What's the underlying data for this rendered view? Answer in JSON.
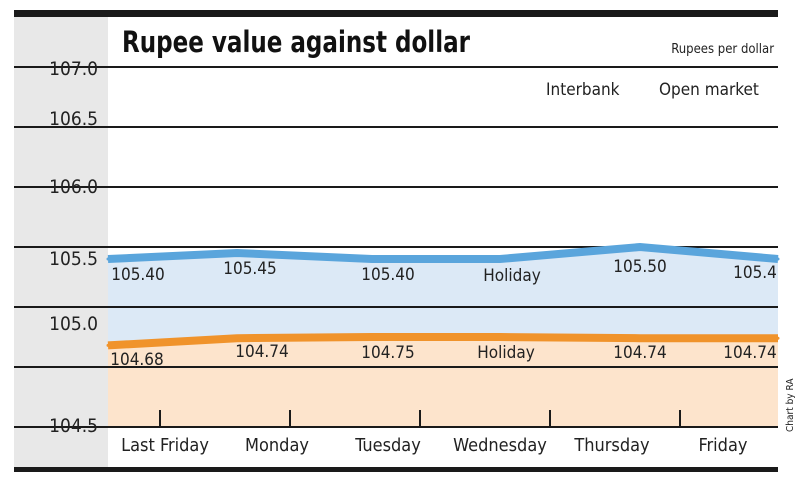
{
  "chart_data": {
    "type": "area",
    "title": "Rupee value against dollar",
    "unit_label": "Rupees per dollar",
    "legend": [
      "Interbank",
      "Open market"
    ],
    "legend_placement": "top-right",
    "categories": [
      "Last Friday",
      "Monday",
      "Tuesday",
      "Wednesday",
      "Thursday",
      "Friday"
    ],
    "y_ticks": [
      "107.0",
      "106.5",
      "106.0",
      "105.5",
      "105.0",
      "104.5"
    ],
    "ylim": [
      104.0,
      107.0
    ],
    "grid": true,
    "series": [
      {
        "color": "#5aa5dc",
        "fill": "#dce9f6",
        "values": [
          105.4,
          105.45,
          105.4,
          null,
          105.5,
          105.4
        ],
        "labels": [
          "105.40",
          "105.45",
          "105.40",
          "Holiday",
          "105.50",
          "105.4"
        ]
      },
      {
        "color": "#f0932b",
        "fill": "#fde4cc",
        "values": [
          104.68,
          104.74,
          104.75,
          null,
          104.74,
          104.74
        ],
        "labels": [
          "104.68",
          "104.74",
          "104.75",
          "Holiday",
          "104.74",
          "104.74"
        ]
      }
    ],
    "credit": "Chart by RA"
  }
}
